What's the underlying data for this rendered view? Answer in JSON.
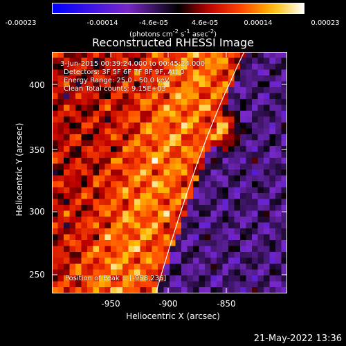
{
  "colorbar": {
    "ticks": [
      "-0.00023",
      "-0.00014",
      "-4.6e-05",
      "4.6e-05",
      "0.00014",
      "0.00023"
    ],
    "units_prefix": "(photons cm",
    "units_exp1": "-2",
    "units_mid": " s",
    "units_exp2": "-1",
    "units_mid2": " asec",
    "units_exp3": "-2",
    "units_suffix": ")"
  },
  "title": "Reconstructed RHESSI Image",
  "annotations": {
    "time_range": "3-Jun-2015 00:39:24.000 to 00:45:24.000",
    "detectors": "Detectors: 3F 5F 6F 7F 8F 9F, Att 0",
    "energy_range": "Energy Range: 25.0 - 50.0 keV",
    "clean_counts": "Clean     Total counts: 9.15E+03",
    "peak_position": "Position of Peak = [-958,236]"
  },
  "axes": {
    "xlabel": "Heliocentric X (arcsec)",
    "ylabel": "Heliocentric Y (arcsec)",
    "xticks": [
      "-950",
      "-900",
      "-850"
    ],
    "yticks": [
      "400",
      "350",
      "300",
      "250"
    ],
    "xlim": [
      -995,
      -810
    ],
    "ylim": [
      235,
      425
    ]
  },
  "timestamp": "21-May-2022 13:36",
  "colors": {
    "background": "#000000",
    "limb": "#ffffff"
  }
}
